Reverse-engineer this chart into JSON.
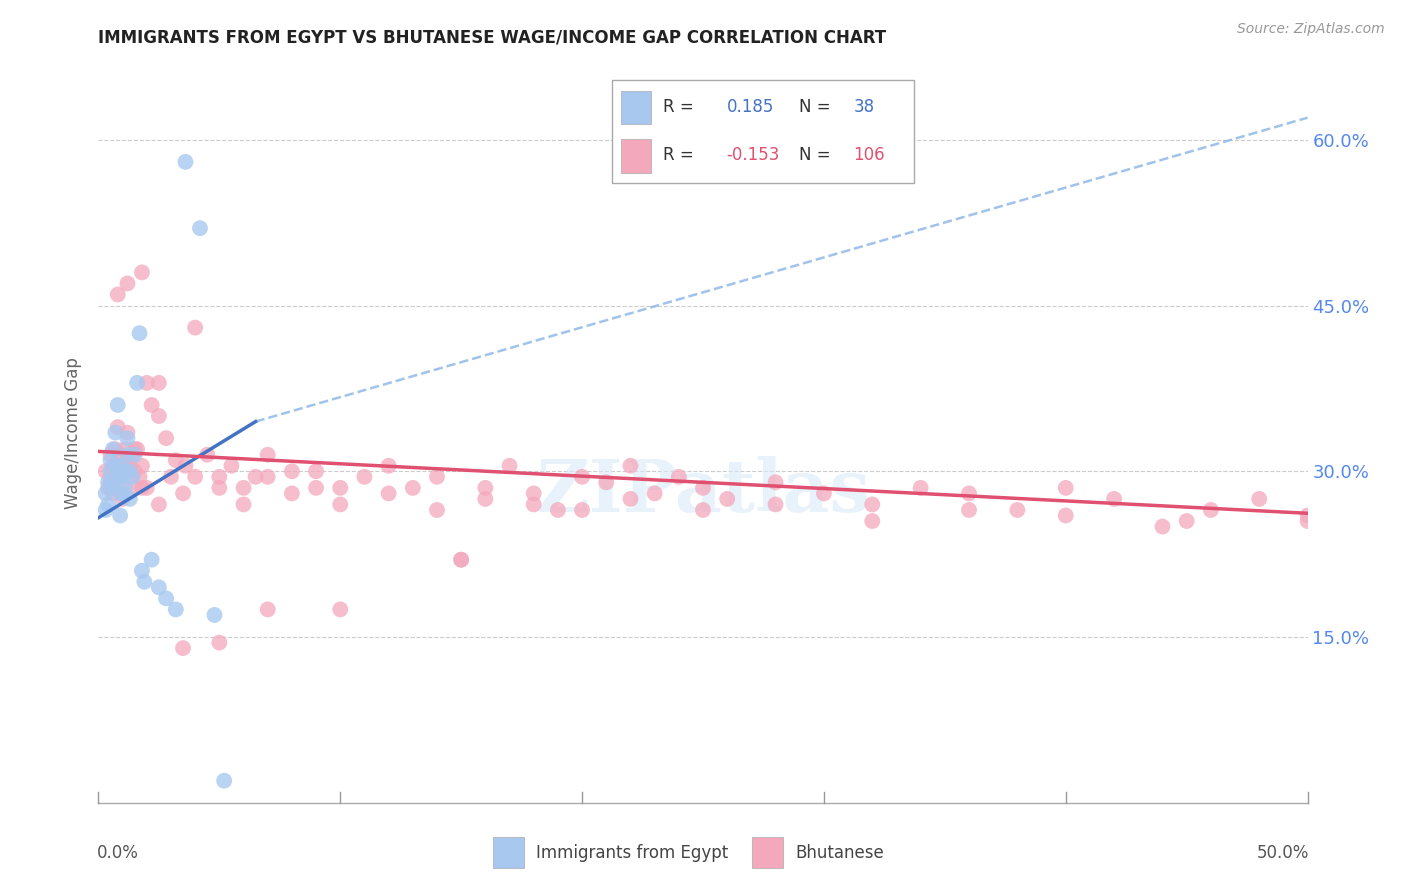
{
  "title": "IMMIGRANTS FROM EGYPT VS BHUTANESE WAGE/INCOME GAP CORRELATION CHART",
  "source": "Source: ZipAtlas.com",
  "ylabel": "Wage/Income Gap",
  "ytick_labels": [
    "15.0%",
    "30.0%",
    "45.0%",
    "60.0%"
  ],
  "ytick_vals": [
    0.15,
    0.3,
    0.45,
    0.6
  ],
  "xrange": [
    0.0,
    0.5
  ],
  "yrange": [
    0.0,
    0.67
  ],
  "color_egypt": "#A8C8F0",
  "color_bhutanese": "#F4A8BC",
  "color_egypt_line": "#4472C4",
  "color_bhutanese_line": "#E05070",
  "color_dashed": "#90B8E8",
  "egypt_line_x0": 0.0,
  "egypt_line_x1": 0.065,
  "egypt_line_y0": 0.258,
  "egypt_line_y1": 0.345,
  "dashed_line_x0": 0.065,
  "dashed_line_x1": 0.5,
  "dashed_line_y0": 0.345,
  "dashed_line_y1": 0.62,
  "bhu_line_x0": 0.0,
  "bhu_line_x1": 0.5,
  "bhu_line_y0": 0.318,
  "bhu_line_y1": 0.262,
  "egypt_x": [
    0.003,
    0.003,
    0.004,
    0.004,
    0.005,
    0.005,
    0.005,
    0.006,
    0.006,
    0.007,
    0.007,
    0.008,
    0.008,
    0.009,
    0.009,
    0.009,
    0.01,
    0.01,
    0.011,
    0.011,
    0.012,
    0.012,
    0.013,
    0.013,
    0.014,
    0.015,
    0.016,
    0.017,
    0.018,
    0.019,
    0.022,
    0.025,
    0.028,
    0.032,
    0.036,
    0.042,
    0.048,
    0.052
  ],
  "egypt_y": [
    0.28,
    0.265,
    0.29,
    0.27,
    0.31,
    0.3,
    0.285,
    0.32,
    0.29,
    0.335,
    0.305,
    0.36,
    0.295,
    0.305,
    0.28,
    0.26,
    0.295,
    0.28,
    0.3,
    0.285,
    0.33,
    0.315,
    0.3,
    0.275,
    0.295,
    0.315,
    0.38,
    0.425,
    0.21,
    0.2,
    0.22,
    0.195,
    0.185,
    0.175,
    0.58,
    0.52,
    0.17,
    0.02
  ],
  "bhutanese_x": [
    0.003,
    0.004,
    0.005,
    0.005,
    0.006,
    0.006,
    0.007,
    0.007,
    0.008,
    0.008,
    0.009,
    0.009,
    0.01,
    0.01,
    0.011,
    0.011,
    0.012,
    0.012,
    0.013,
    0.014,
    0.015,
    0.015,
    0.016,
    0.017,
    0.018,
    0.018,
    0.02,
    0.022,
    0.025,
    0.028,
    0.032,
    0.036,
    0.04,
    0.045,
    0.05,
    0.055,
    0.06,
    0.065,
    0.07,
    0.08,
    0.09,
    0.1,
    0.11,
    0.12,
    0.13,
    0.14,
    0.15,
    0.16,
    0.17,
    0.18,
    0.19,
    0.2,
    0.21,
    0.22,
    0.23,
    0.24,
    0.25,
    0.26,
    0.28,
    0.3,
    0.32,
    0.34,
    0.36,
    0.38,
    0.4,
    0.42,
    0.44,
    0.46,
    0.48,
    0.5,
    0.005,
    0.01,
    0.015,
    0.02,
    0.025,
    0.03,
    0.035,
    0.04,
    0.05,
    0.06,
    0.07,
    0.08,
    0.09,
    0.1,
    0.12,
    0.14,
    0.16,
    0.18,
    0.2,
    0.22,
    0.25,
    0.28,
    0.32,
    0.36,
    0.4,
    0.45,
    0.5,
    0.008,
    0.012,
    0.018,
    0.025,
    0.035,
    0.05,
    0.07,
    0.1,
    0.15
  ],
  "bhutanese_y": [
    0.3,
    0.285,
    0.315,
    0.29,
    0.305,
    0.28,
    0.32,
    0.295,
    0.34,
    0.305,
    0.315,
    0.285,
    0.3,
    0.275,
    0.32,
    0.295,
    0.335,
    0.31,
    0.305,
    0.315,
    0.3,
    0.285,
    0.32,
    0.295,
    0.305,
    0.285,
    0.38,
    0.36,
    0.35,
    0.33,
    0.31,
    0.305,
    0.43,
    0.315,
    0.295,
    0.305,
    0.285,
    0.295,
    0.315,
    0.3,
    0.3,
    0.285,
    0.295,
    0.305,
    0.285,
    0.295,
    0.22,
    0.285,
    0.305,
    0.28,
    0.265,
    0.295,
    0.29,
    0.305,
    0.28,
    0.295,
    0.285,
    0.275,
    0.29,
    0.28,
    0.27,
    0.285,
    0.28,
    0.265,
    0.285,
    0.275,
    0.25,
    0.265,
    0.275,
    0.255,
    0.295,
    0.305,
    0.32,
    0.285,
    0.27,
    0.295,
    0.28,
    0.295,
    0.285,
    0.27,
    0.295,
    0.28,
    0.285,
    0.27,
    0.28,
    0.265,
    0.275,
    0.27,
    0.265,
    0.275,
    0.265,
    0.27,
    0.255,
    0.265,
    0.26,
    0.255,
    0.26,
    0.46,
    0.47,
    0.48,
    0.38,
    0.14,
    0.145,
    0.175,
    0.175,
    0.22
  ]
}
